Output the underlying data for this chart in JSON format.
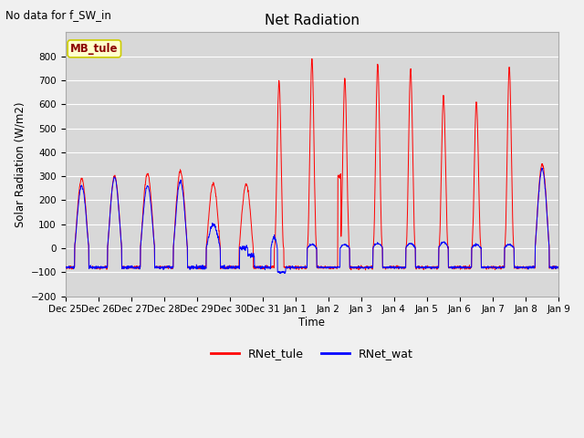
{
  "title": "Net Radiation",
  "subtitle": "No data for f_SW_in",
  "ylabel": "Solar Radiation (W/m2)",
  "xlabel": "Time",
  "ylim": [
    -200,
    900
  ],
  "yticks": [
    -200,
    -100,
    0,
    100,
    200,
    300,
    400,
    500,
    600,
    700,
    800
  ],
  "fig_bg_color": "#f0f0f0",
  "plot_bg_color": "#d8d8d8",
  "grid_color": "white",
  "legend_label_tule": "RNet_tule",
  "legend_label_wat": "RNet_wat",
  "color_tule": "red",
  "color_wat": "blue",
  "mb_tule_box_color": "#ffffcc",
  "mb_tule_text_color": "#8b0000",
  "mb_tule_edge_color": "#cccc00",
  "xtick_labels": [
    "Dec 25",
    "Dec 26",
    "Dec 27",
    "Dec 28",
    "Dec 29",
    "Dec 30",
    "Dec 31",
    "Jan 1",
    "Jan 2",
    "Jan 3",
    "Jan 4",
    "Jan 5",
    "Jan 6",
    "Jan 7",
    "Jan 8",
    "Jan 9"
  ],
  "n_days": 15,
  "pts_per_day": 144
}
